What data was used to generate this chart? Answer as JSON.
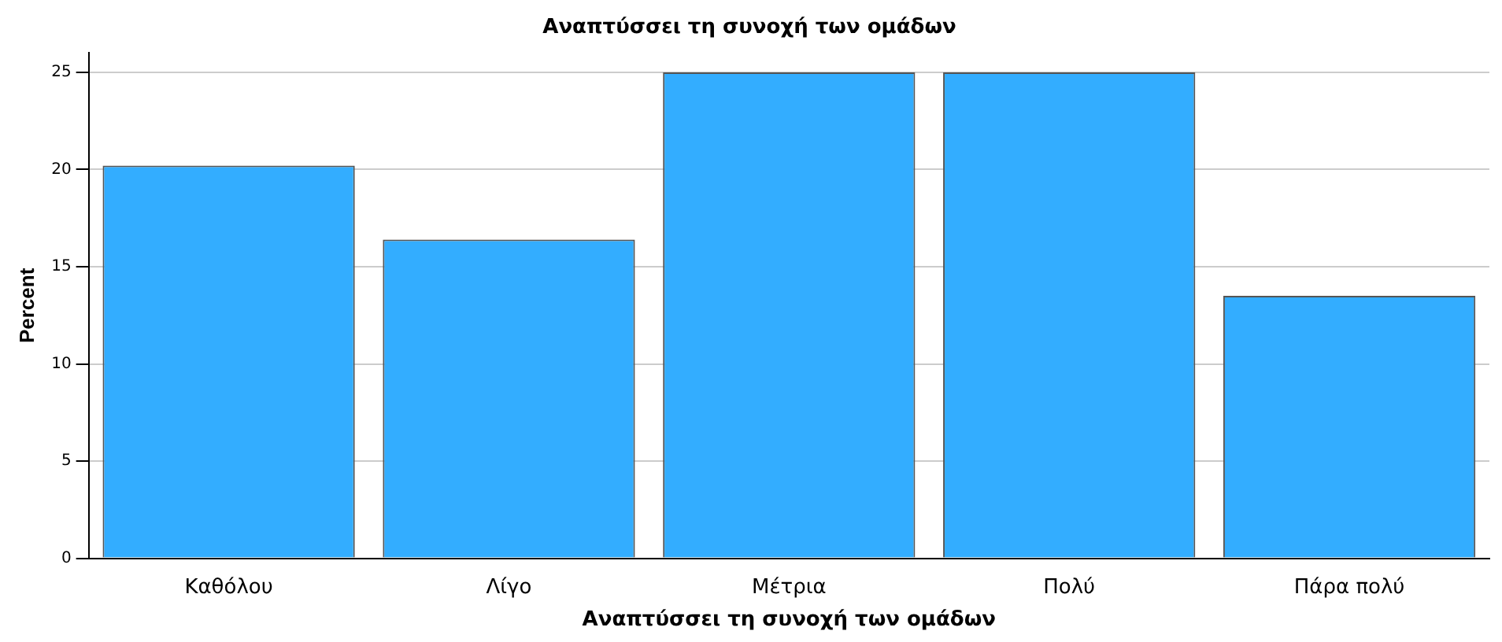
{
  "chart_data": {
    "type": "bar",
    "title": "Αναπτύσσει τη συνοχή των ομάδων",
    "xlabel": "Αναπτύσσει τη συνοχή των ομάδων",
    "ylabel": "Percent",
    "categories": [
      "Καθόλου",
      "Λίγο",
      "Μέτρια",
      "Πολύ",
      "Πάρα πολύ"
    ],
    "values": [
      20.2,
      16.4,
      25.0,
      25.0,
      13.5
    ],
    "color": "#33adff",
    "ylim": [
      0,
      26
    ],
    "yticks": [
      0,
      5,
      10,
      15,
      20,
      25
    ],
    "grid": "y",
    "legend": false
  }
}
